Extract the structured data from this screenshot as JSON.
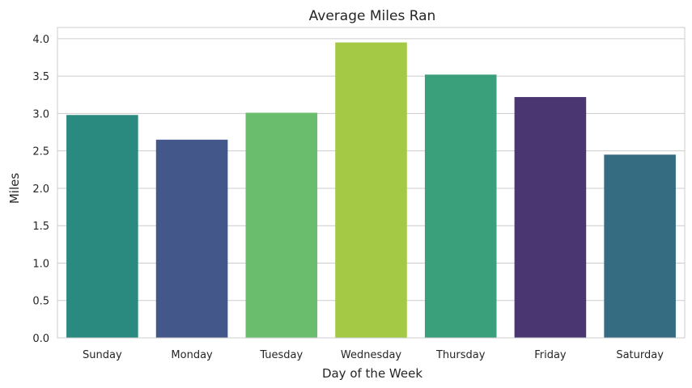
{
  "chart_data": {
    "type": "bar",
    "title": "Average Miles Ran",
    "xlabel": "Day of the Week",
    "ylabel": "Miles",
    "categories": [
      "Sunday",
      "Monday",
      "Tuesday",
      "Wednesday",
      "Thursday",
      "Friday",
      "Saturday"
    ],
    "values": [
      2.98,
      2.65,
      3.01,
      3.95,
      3.52,
      3.22,
      2.45
    ],
    "colors": [
      "#2a8a7f",
      "#43578a",
      "#6bbd6e",
      "#a4c945",
      "#3aa07c",
      "#4a3772",
      "#366c82"
    ],
    "ylim": [
      0,
      4.15
    ],
    "yticks": [
      "0.0",
      "0.5",
      "1.0",
      "1.5",
      "2.0",
      "2.5",
      "3.0",
      "3.5",
      "4.0"
    ],
    "grid": true,
    "grid_color": "#cccccc",
    "legend": "none"
  }
}
